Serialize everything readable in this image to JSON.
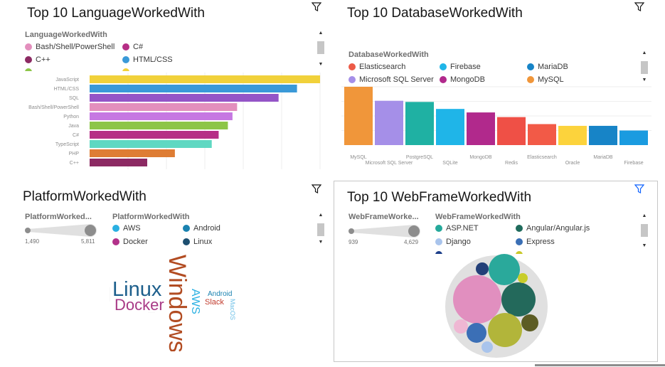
{
  "colors": {
    "yellow": "#f1d13a",
    "blue": "#3a99d8",
    "purple": "#9455c7",
    "pink": "#e38fbd",
    "lavender": "#c678e2",
    "green": "#8dc548",
    "magenta": "#b62f86",
    "teal": "#5fd8c2",
    "orange": "#de7d34",
    "wine": "#8c2a63"
  },
  "panels": {
    "language": {
      "title": "Top 10 LanguageWorkedWith",
      "legend_title": "LanguageWorkedWith",
      "legend": [
        {
          "label": "Bash/Shell/PowerShell",
          "color": "#e38fbd"
        },
        {
          "label": "C#",
          "color": "#b62f86"
        },
        {
          "label": "C++",
          "color": "#8c2a63"
        },
        {
          "label": "HTML/CSS",
          "color": "#3a99d8"
        }
      ]
    },
    "database": {
      "title": "Top 10 DatabaseWorkedWith",
      "legend_title": "DatabaseWorkedWith",
      "legend": [
        {
          "label": "Elasticsearch",
          "color": "#ec5a47"
        },
        {
          "label": "Firebase",
          "color": "#1fb5e8"
        },
        {
          "label": "MariaDB",
          "color": "#1784c7"
        },
        {
          "label": "Microsoft SQL Server",
          "color": "#a58fe8"
        },
        {
          "label": "MongoDB",
          "color": "#b1298c"
        },
        {
          "label": "MySQL",
          "color": "#f0963a"
        }
      ]
    },
    "platform": {
      "title": "PlatformWorkedWith",
      "size_legend_title": "PlatformWorked...",
      "size_min": "1,490",
      "size_max": "5,811",
      "legend_title": "PlatformWorkedWith",
      "legend": [
        {
          "label": "AWS",
          "color": "#2ab0e2"
        },
        {
          "label": "Android",
          "color": "#1a82b0"
        },
        {
          "label": "Docker",
          "color": "#b2318a"
        },
        {
          "label": "Linux",
          "color": "#1d4f70"
        }
      ],
      "words": [
        {
          "text": "Windows",
          "color": "#b24c22"
        },
        {
          "text": "Linux",
          "color": "#1d5f8c"
        },
        {
          "text": "Docker",
          "color": "#a83a86"
        },
        {
          "text": "AWS",
          "color": "#2ab0e2"
        },
        {
          "text": "Android",
          "color": "#1a82b0"
        },
        {
          "text": "Slack",
          "color": "#c0392b"
        },
        {
          "text": "MacOS",
          "color": "#6fc1e8"
        }
      ]
    },
    "webframe": {
      "title": "Top 10 WebFrameWorkedWith",
      "size_legend_title": "WebFrameWorke...",
      "size_min": "939",
      "size_max": "4,629",
      "legend_title": "WebFrameWorkedWith",
      "legend": [
        {
          "label": "ASP.NET",
          "color": "#25a99b"
        },
        {
          "label": "Angular/Angular.js",
          "color": "#1f6b5c"
        },
        {
          "label": "Django",
          "color": "#a9c4ec"
        },
        {
          "label": "Express",
          "color": "#3a6fb5"
        }
      ]
    }
  },
  "chart_data": [
    {
      "type": "bar",
      "orientation": "horizontal",
      "title": "Top 10 LanguageWorkedWith",
      "categories": [
        "JavaScript",
        "HTML/CSS",
        "SQL",
        "Bash/Shell/PowerShell",
        "Python",
        "Java",
        "C#",
        "TypeScript",
        "PHP",
        "C++"
      ],
      "values": [
        100,
        90,
        82,
        64,
        62,
        60,
        56,
        53,
        37,
        25
      ],
      "colors": [
        "#f1d13a",
        "#3a99d8",
        "#9455c7",
        "#e38fbd",
        "#c678e2",
        "#8dc548",
        "#b62f86",
        "#5fd8c2",
        "#de7d34",
        "#8c2a63"
      ],
      "grid": true
    },
    {
      "type": "bar",
      "orientation": "vertical",
      "title": "Top 10 DatabaseWorkedWith",
      "categories": [
        "MySQL",
        "Microsoft SQL Server",
        "PostgreSQL",
        "SQLite",
        "MongoDB",
        "Redis",
        "Elasticsearch",
        "Oracle",
        "MariaDB",
        "Firebase"
      ],
      "values": [
        100,
        76,
        74,
        62,
        56,
        48,
        36,
        33,
        33,
        25
      ],
      "colors": [
        "#f0963a",
        "#a58fe8",
        "#1fb1a3",
        "#1fb5e8",
        "#b1298c",
        "#ef5046",
        "#f25a47",
        "#fcd33c",
        "#1784c7",
        "#1a9be0"
      ],
      "grid": true
    },
    {
      "type": "wordcloud",
      "title": "PlatformWorkedWith",
      "size_range": [
        1490,
        5811
      ]
    },
    {
      "type": "bubble",
      "title": "Top 10 WebFrameWorkedWith",
      "size_range": [
        939,
        4629
      ]
    }
  ]
}
